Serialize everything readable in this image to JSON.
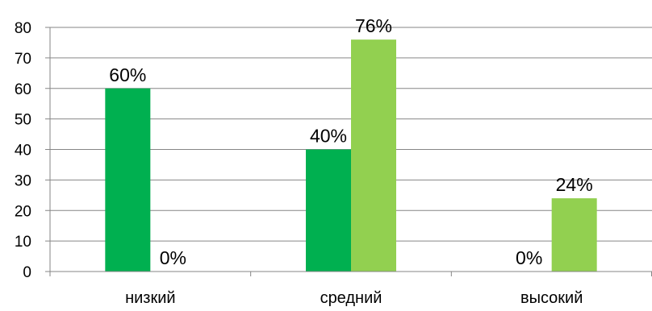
{
  "chart_data": {
    "type": "bar",
    "categories": [
      "низкий",
      "средний",
      "высокий"
    ],
    "series": [
      {
        "values": [
          60,
          40,
          0
        ],
        "labels": [
          "60%",
          "40%",
          "0%"
        ],
        "color": "#00B050"
      },
      {
        "values": [
          0,
          76,
          24
        ],
        "labels": [
          "0%",
          "76%",
          "24%"
        ],
        "color": "#92D050"
      }
    ],
    "ylim": [
      0,
      80
    ],
    "yticks": [
      "0",
      "10",
      "20",
      "30",
      "40",
      "50",
      "60",
      "70",
      "80"
    ],
    "grid": true,
    "legend": "none",
    "colors": {
      "grid": "#868686",
      "axis": "#868686",
      "text": "#000000"
    }
  }
}
